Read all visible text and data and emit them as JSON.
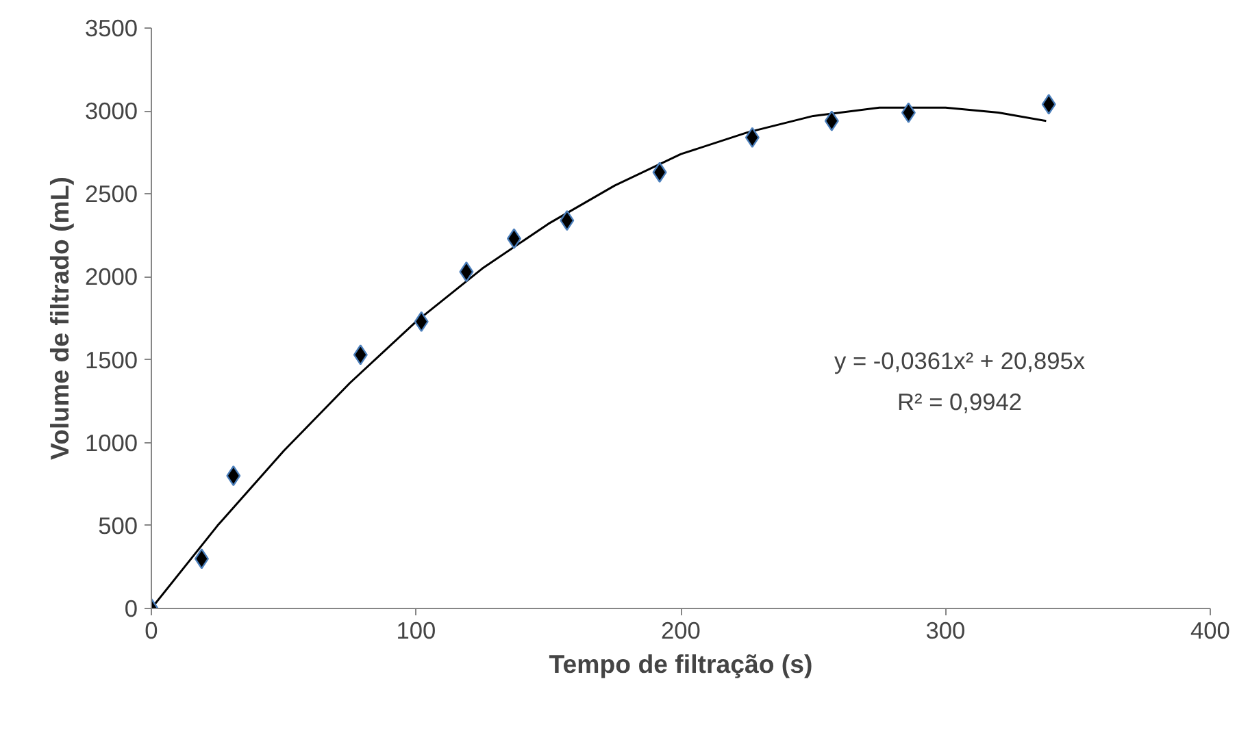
{
  "chart_data": {
    "type": "scatter",
    "xlabel": "Tempo de filtração (s)",
    "ylabel": "Volume de filtrado (mL)",
    "xlim": [
      0,
      400
    ],
    "xticks": [
      0,
      100,
      200,
      300,
      400
    ],
    "ylim": [
      0,
      3500
    ],
    "yticks": [
      0,
      500,
      1000,
      1500,
      2000,
      2500,
      3000,
      3500
    ],
    "grid": false,
    "series": [
      {
        "marker": "diamond",
        "color": "#000000",
        "x": [
          0,
          19,
          31,
          79,
          102,
          119,
          137,
          157,
          192,
          227,
          257,
          286,
          339
        ],
        "values": [
          0,
          300,
          800,
          1530,
          1730,
          2030,
          2230,
          2340,
          2630,
          2840,
          2940,
          2990,
          3040
        ]
      },
      {
        "type": "line",
        "color": "#000000",
        "x": [
          0,
          25,
          50,
          75,
          100,
          125,
          150,
          175,
          200,
          225,
          250,
          275,
          300,
          320,
          338
        ],
        "values": [
          0,
          500,
          950,
          1360,
          1730,
          2050,
          2320,
          2550,
          2740,
          2870,
          2970,
          3020,
          3020,
          2990,
          2940
        ]
      }
    ],
    "annotations": [
      "y = -0,0361x² + 20,895x",
      "R² = 0,9942"
    ]
  }
}
